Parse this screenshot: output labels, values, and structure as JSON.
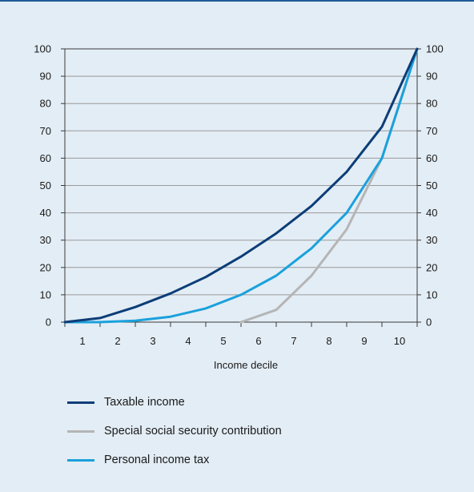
{
  "colors": {
    "background": "#e3edf5",
    "top_rule": "#1f5c99",
    "grid": "#9a9a9a",
    "axis": "#3a3a3a"
  },
  "chart_data": {
    "type": "line",
    "xlabel": "Income decile",
    "x_categories": [
      "1",
      "2",
      "3",
      "4",
      "5",
      "6",
      "7",
      "8",
      "9",
      "10"
    ],
    "ylim": [
      0,
      100
    ],
    "yticks": [
      0,
      10,
      20,
      30,
      40,
      50,
      60,
      70,
      80,
      90,
      100
    ],
    "secondary_yaxis": true,
    "grid": "horizontal",
    "legend_position": "bottom",
    "series": [
      {
        "name": "Taxable income",
        "color": "#0c3d78",
        "x": [
          0.5,
          1.5,
          2.5,
          3.5,
          4.5,
          5.5,
          6.5,
          7.5,
          8.5,
          9.5,
          10.5
        ],
        "y": [
          0,
          1.5,
          5.5,
          10.5,
          16.5,
          24,
          32.5,
          42.5,
          55,
          71.5,
          100
        ]
      },
      {
        "name": "Special social security contribution",
        "color": "#b5b5b5",
        "x": [
          5.5,
          6.5,
          7.5,
          8.5,
          9.5,
          10.5
        ],
        "y": [
          0,
          4.5,
          17,
          34,
          60,
          100
        ]
      },
      {
        "name": "Personal income tax",
        "color": "#1aa1dc",
        "x": [
          0.5,
          1.5,
          2.5,
          3.5,
          4.5,
          5.5,
          6.5,
          7.5,
          8.5,
          9.5,
          10.5
        ],
        "y": [
          0,
          0,
          0.5,
          2,
          5,
          10,
          17,
          27,
          40,
          60,
          100
        ]
      }
    ]
  }
}
